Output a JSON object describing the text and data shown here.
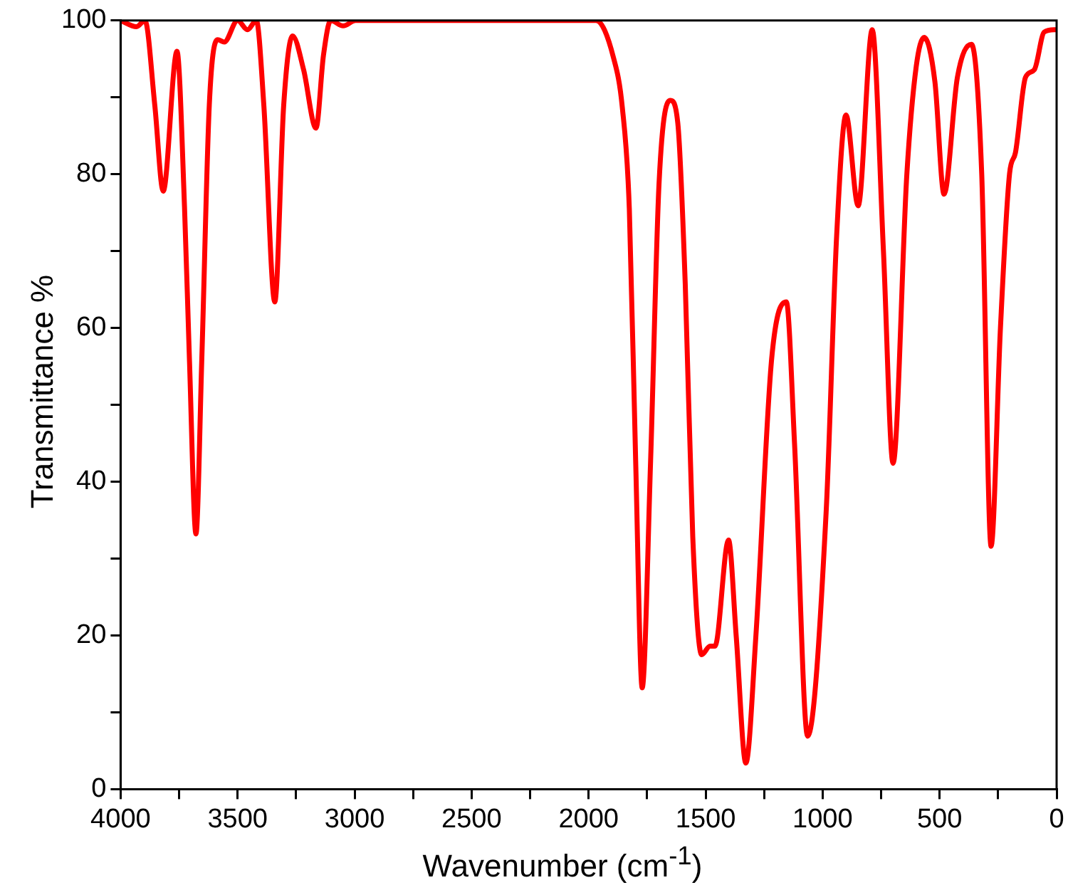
{
  "chart_data": {
    "type": "line",
    "xlabel": "Wavenumber (cm$^{-1}$)",
    "ylabel": "Transmittance %",
    "xlim": [
      4000,
      0
    ],
    "ylim": [
      0,
      100
    ],
    "xticks": [
      0,
      {
        "value": 250,
        "label": null
      },
      500,
      {
        "value": 750,
        "label": null
      },
      1000,
      {
        "value": 1250,
        "label": null
      },
      1500,
      {
        "value": 1750,
        "label": null
      },
      2000,
      {
        "value": 2250,
        "label": null
      },
      2500,
      {
        "value": 2750,
        "label": null
      },
      3000,
      {
        "value": 3250,
        "label": null
      },
      3500,
      {
        "value": 3750,
        "label": null
      },
      4000
    ],
    "yticks": [
      0,
      {
        "value": 10,
        "label": null
      },
      20,
      {
        "value": 30,
        "label": null
      },
      40,
      {
        "value": 50,
        "label": null
      },
      60,
      {
        "value": 70,
        "label": null
      },
      80,
      {
        "value": 90,
        "label": null
      },
      100
    ],
    "grid": false,
    "legend": false,
    "marker": "none",
    "line_style": "solid",
    "series": [
      {
        "color": "#ff0000",
        "x": [
          4000,
          3932,
          3896,
          3854,
          3818,
          3759,
          3727,
          3706,
          3678,
          3653,
          3621,
          3585,
          3557,
          3500,
          3458,
          3420,
          3388,
          3341,
          3303,
          3265,
          3218,
          3165,
          3133,
          3102,
          3049,
          2996,
          2500,
          1968,
          1894,
          1856,
          1826,
          1799,
          1771,
          1735,
          1699,
          1650,
          1619,
          1587,
          1555,
          1517,
          1481,
          1460,
          1402,
          1369,
          1328,
          1285,
          1218,
          1155,
          1120,
          1064,
          985,
          940,
          900,
          848,
          788,
          740,
          699,
          640,
          600,
          566,
          520,
          481,
          424,
          364,
          320,
          280,
          240,
          201,
          176,
          133,
          95,
          53,
          11,
          0
        ],
        "values": [
          100,
          99.2,
          100,
          89,
          77.8,
          96,
          75.8,
          56,
          33.2,
          56,
          89,
          97.5,
          97.2,
          100,
          98.8,
          100,
          89,
          63.4,
          89,
          98,
          93.6,
          86,
          95.5,
          100,
          99.3,
          100,
          100,
          100,
          95.2,
          88.7,
          75.5,
          42.8,
          13.2,
          42.8,
          78.8,
          89.6,
          86.7,
          65.7,
          32.9,
          17.5,
          18.6,
          18.6,
          32.4,
          19.8,
          3.4,
          20,
          55.9,
          63.4,
          45,
          6.9,
          36,
          72,
          87.7,
          75.9,
          98.8,
          70,
          42.4,
          80,
          94,
          97.8,
          92,
          77.4,
          92.6,
          96.9,
          80,
          31.6,
          60,
          80.1,
          82.8,
          92.6,
          93.6,
          98.5,
          98.8,
          98.8
        ]
      }
    ]
  }
}
